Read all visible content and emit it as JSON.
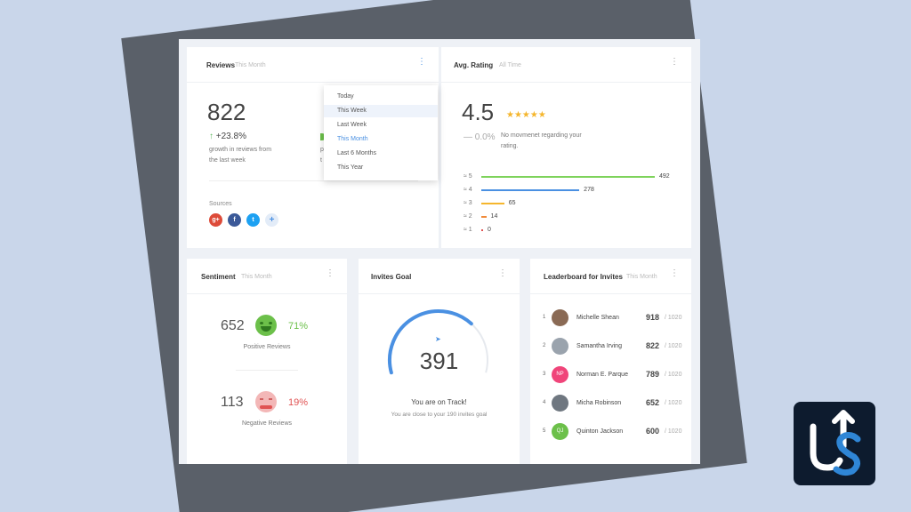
{
  "reviews": {
    "title": "Reviews",
    "period": "This Month",
    "count": "822",
    "growth": "+23.8%",
    "growth_desc_line1": "growth in reviews from",
    "growth_desc_line2": "the last week",
    "sources_label": "Sources",
    "sources": [
      {
        "label": "g+",
        "icon": "google-plus-icon",
        "color": "#dd4b39"
      },
      {
        "label": "f",
        "icon": "facebook-icon",
        "color": "#3b5998"
      },
      {
        "label": "t",
        "icon": "twitter-icon",
        "color": "#1da1f2"
      },
      {
        "label": "+",
        "icon": "add-source-icon",
        "color": "#e3ecf8"
      }
    ]
  },
  "dropdown": {
    "items": [
      "Today",
      "This Week",
      "Last Week",
      "This Month",
      "Last 6 Months",
      "This Year"
    ],
    "hovered": "This Week",
    "selected": "This Month"
  },
  "rating": {
    "title": "Avg. Rating",
    "period": "All Time",
    "value": "4.5",
    "stars": "★★★★★",
    "change": "— 0.0%",
    "change_desc_line1": "No movmenet regarding your",
    "change_desc_line2": "rating.",
    "rows": [
      {
        "label": "≈ 5",
        "count": 492,
        "color": "#7ed35b"
      },
      {
        "label": "≈ 4",
        "count": 278,
        "color": "#4a90e2"
      },
      {
        "label": "≈ 3",
        "count": 65,
        "color": "#f5b62d"
      },
      {
        "label": "≈ 2",
        "count": 14,
        "color": "#f08a3a"
      },
      {
        "label": "≈ 1",
        "count": 0,
        "color": "#e05252"
      }
    ]
  },
  "sentiment": {
    "title": "Sentiment",
    "period": "This Month",
    "positive_count": "652",
    "positive_pct": "71%",
    "positive_label": "Positive Reviews",
    "negative_count": "113",
    "negative_pct": "19%",
    "negative_label": "Negative Reviews",
    "positive_color": "#6cc04a",
    "negative_color": "#e05252"
  },
  "invites": {
    "title": "Invites Goal",
    "count": "391",
    "progress": 0.7,
    "status": "You are on Track!",
    "status_desc": "You are close to your 190 invites goal"
  },
  "leaderboard": {
    "title": "Leaderboard for Invites",
    "period": "This Month",
    "max": "/ 1020",
    "entries": [
      {
        "rank": "1",
        "name": "Michelle Shean",
        "score": "918",
        "initials": "",
        "color": "#8a6a55"
      },
      {
        "rank": "2",
        "name": "Samantha Irving",
        "score": "822",
        "initials": "",
        "color": "#9aa3ad"
      },
      {
        "rank": "3",
        "name": "Norman E. Parque",
        "score": "789",
        "initials": "NP",
        "color": "#f0457a"
      },
      {
        "rank": "4",
        "name": "Micha Robinson",
        "score": "652",
        "initials": "",
        "color": "#6f7780"
      },
      {
        "rank": "5",
        "name": "Quinton Jackson",
        "score": "600",
        "initials": "QJ",
        "color": "#6cc04a"
      }
    ]
  }
}
